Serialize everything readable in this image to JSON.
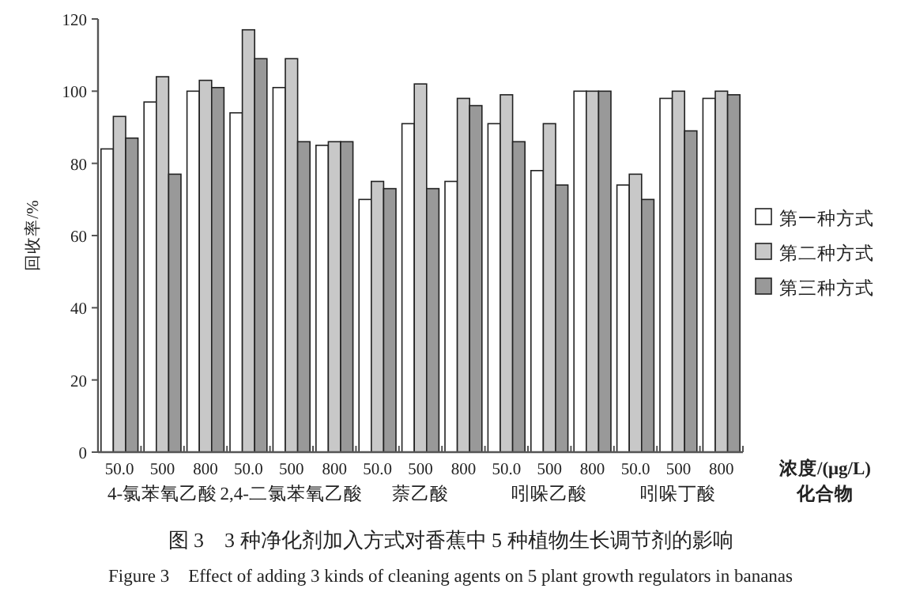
{
  "chart_data": {
    "type": "bar",
    "title": "图 3　3 种净化剂加入方式对香蕉中 5 种植物生长调节剂的影响",
    "subtitle": "Figure 3　Effect of adding 3 kinds of cleaning agents on 5 plant growth regulators in bananas",
    "ylabel": "回收率/%",
    "xlabel": "浓度/(μg/L)",
    "categories": [
      "50.0",
      "500",
      "800",
      "50.0",
      "500",
      "800",
      "50.0",
      "500",
      "800",
      "50.0",
      "500",
      "800",
      "50.0",
      "500",
      "800"
    ],
    "series": [
      {
        "name": "第一种方式",
        "color": "#ffffff",
        "values": [
          84,
          97,
          100,
          94,
          101,
          85,
          70,
          91,
          75,
          91,
          78,
          100,
          74,
          98,
          98
        ]
      },
      {
        "name": "第二种方式",
        "color": "#c8c8c8",
        "values": [
          93,
          104,
          103,
          117,
          109,
          86,
          75,
          102,
          98,
          99,
          91,
          100,
          77,
          100,
          100
        ]
      },
      {
        "name": "第三种方式",
        "color": "#999999",
        "values": [
          87,
          77,
          101,
          109,
          86,
          86,
          73,
          73,
          96,
          86,
          74,
          100,
          70,
          89,
          99
        ]
      }
    ],
    "annotations": [
      "4-氯苯氧乙酸",
      "2,4-二氯苯氧乙酸",
      "萘乙酸",
      "吲哚乙酸",
      "吲哚丁酸",
      "化合物"
    ],
    "ylim": [
      0,
      120
    ],
    "yticks": [
      0,
      20,
      40,
      60,
      80,
      100,
      120
    ],
    "legend": "right",
    "grid": false
  }
}
